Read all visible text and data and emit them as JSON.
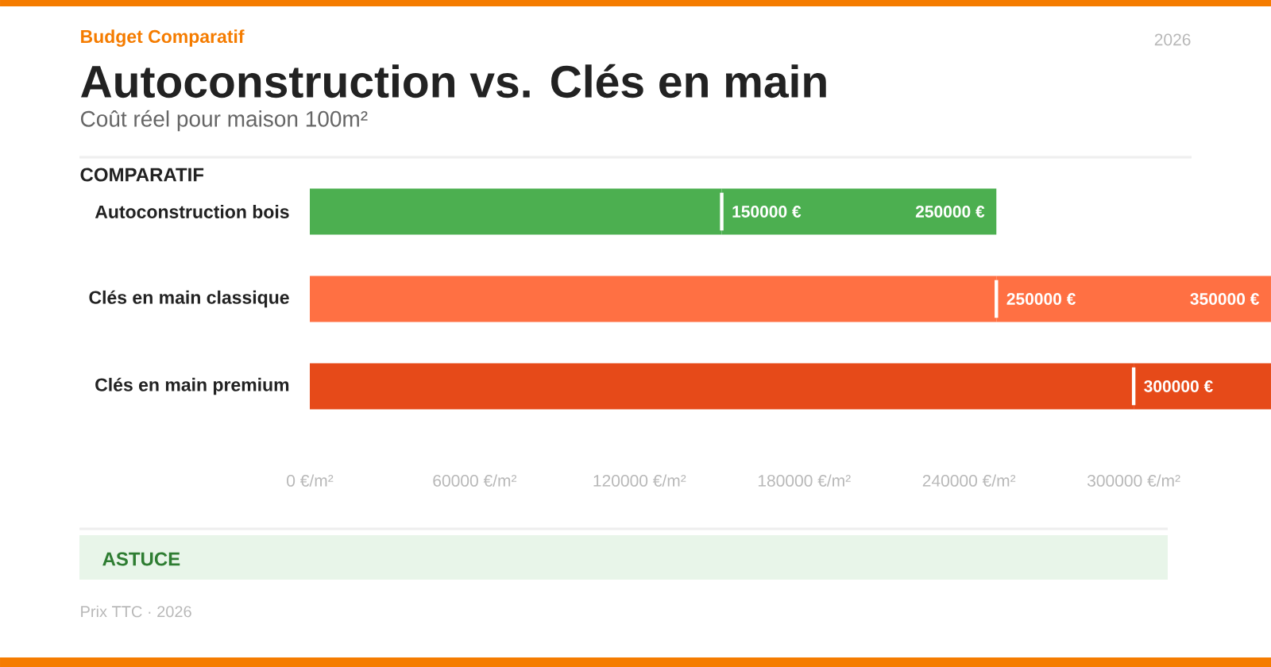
{
  "chart_data": {
    "type": "bar",
    "orientation": "horizontal",
    "stacked": true,
    "title": "Autoconstruction vs. Clés en main",
    "subtitle": "Coût réel pour maison 100m²",
    "annotations": [
      "Budget Comparatif",
      "2026",
      "COMPARATIF",
      "ASTUCE",
      "Prix TTC · 2026"
    ],
    "categories": [
      "Autoconstruction bois",
      "Clés en main classique",
      "Clés en main premium"
    ],
    "series": [
      {
        "colors": [
          "#4caf50",
          "#ff7043",
          "#e64a19"
        ],
        "values": [
          150000,
          250000,
          300000
        ],
        "value_labels": [
          "150000 €",
          "250000 €",
          "300000 €"
        ]
      },
      {
        "colors": [
          "#4caf50",
          "#ff7043",
          "#e64a19"
        ],
        "values": [
          100000,
          100000,
          50000
        ]
      }
    ],
    "totals": [
      "250000 €",
      "350000 €",
      null
    ],
    "xlim": [
      0,
      350000
    ],
    "xticks": [
      {
        "value": 0,
        "label": "0 €/m²"
      },
      {
        "value": 60000,
        "label": "60000 €/m²"
      },
      {
        "value": 120000,
        "label": "120000 €/m²"
      },
      {
        "value": 180000,
        "label": "180000 €/m²"
      },
      {
        "value": 240000,
        "label": "240000 €/m²"
      },
      {
        "value": 300000,
        "label": "300000 €/m²"
      }
    ]
  }
}
